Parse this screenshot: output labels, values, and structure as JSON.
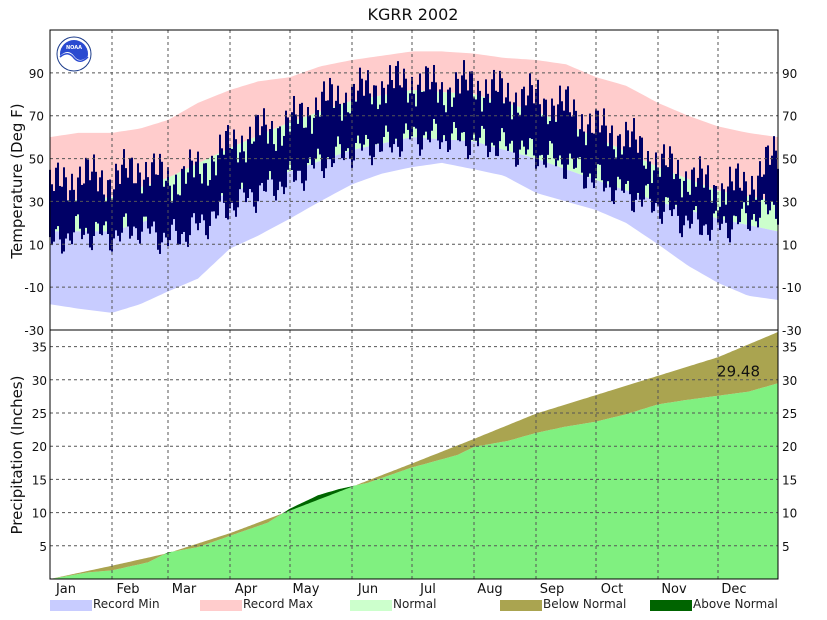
{
  "title": "KGRR 2002",
  "logo_text": "NOAA",
  "colors": {
    "record_min": "#c8ccff",
    "record_max": "#ffcccc",
    "normal": "#ccffcc",
    "actual": "#000066",
    "below_normal": "#aaa450",
    "above_normal": "#006400",
    "precip_fill": "#80f080"
  },
  "legend": {
    "record_min": "Record Min",
    "record_max": "Record Max",
    "normal": "Normal",
    "below_normal": "Below Normal",
    "above_normal": "Above Normal"
  },
  "chart_data": [
    {
      "type": "area",
      "ylabel": "Temperature (Deg F)",
      "ylim": [
        -30,
        110
      ],
      "yticks": [
        -30,
        -10,
        10,
        30,
        50,
        70,
        90
      ],
      "categories": [
        "Jan",
        "Feb",
        "Mar",
        "Apr",
        "May",
        "Jun",
        "Jul",
        "Aug",
        "Sep",
        "Oct",
        "Nov",
        "Dec"
      ],
      "grid": true,
      "series": [
        {
          "name": "Record Max",
          "x": [
            1,
            15,
            32,
            46,
            60,
            75,
            91,
            105,
            121,
            136,
            152,
            167,
            182,
            197,
            213,
            228,
            244,
            259,
            274,
            289,
            305,
            320,
            335,
            350,
            365
          ],
          "values": [
            60,
            62,
            62,
            64,
            68,
            76,
            82,
            86,
            88,
            93,
            96,
            98,
            100,
            100,
            99,
            97,
            96,
            94,
            88,
            84,
            76,
            70,
            65,
            62,
            60
          ]
        },
        {
          "name": "Normal High",
          "x": [
            1,
            32,
            60,
            91,
            121,
            152,
            182,
            213,
            244,
            274,
            305,
            335,
            365
          ],
          "values": [
            30,
            32,
            41,
            55,
            67,
            77,
            82,
            80,
            72,
            60,
            46,
            35,
            30
          ]
        },
        {
          "name": "Normal Low",
          "x": [
            1,
            32,
            60,
            91,
            121,
            152,
            182,
            213,
            244,
            274,
            305,
            335,
            365
          ],
          "values": [
            16,
            16,
            24,
            34,
            44,
            54,
            60,
            58,
            50,
            40,
            30,
            22,
            16
          ]
        },
        {
          "name": "Record Min",
          "x": [
            1,
            15,
            32,
            46,
            60,
            75,
            91,
            105,
            121,
            136,
            152,
            167,
            182,
            197,
            213,
            228,
            244,
            259,
            274,
            289,
            305,
            320,
            335,
            350,
            365
          ],
          "values": [
            -18,
            -20,
            -22,
            -18,
            -12,
            -6,
            8,
            14,
            22,
            30,
            38,
            43,
            46,
            48,
            45,
            42,
            34,
            30,
            26,
            20,
            10,
            0,
            -8,
            -14,
            -16
          ]
        },
        {
          "name": "Daily High",
          "x": [
            1,
            15,
            32,
            46,
            60,
            75,
            91,
            105,
            121,
            136,
            152,
            167,
            182,
            197,
            213,
            228,
            244,
            259,
            274,
            289,
            305,
            320,
            335,
            350,
            365
          ],
          "values": [
            36,
            42,
            40,
            46,
            40,
            44,
            56,
            62,
            66,
            76,
            80,
            84,
            86,
            82,
            85,
            80,
            78,
            74,
            64,
            60,
            48,
            42,
            36,
            38,
            52
          ]
        },
        {
          "name": "Daily Low",
          "x": [
            1,
            15,
            32,
            46,
            60,
            75,
            91,
            105,
            121,
            136,
            152,
            167,
            182,
            197,
            213,
            228,
            244,
            259,
            274,
            289,
            305,
            320,
            335,
            350,
            365
          ],
          "values": [
            10,
            16,
            14,
            18,
            12,
            18,
            28,
            34,
            40,
            48,
            54,
            56,
            60,
            60,
            58,
            56,
            52,
            48,
            40,
            34,
            28,
            20,
            18,
            22,
            28
          ]
        }
      ]
    },
    {
      "type": "area",
      "ylabel": "Precipitation (Inches)",
      "ylim": [
        0,
        37.5
      ],
      "yticks": [
        5,
        10,
        15,
        20,
        25,
        30,
        35
      ],
      "categories": [
        "Jan",
        "Feb",
        "Mar",
        "Apr",
        "May",
        "Jun",
        "Jul",
        "Aug",
        "Sep",
        "Oct",
        "Nov",
        "Dec"
      ],
      "grid": true,
      "annotation": "29.48",
      "series": [
        {
          "name": "Normal Accumulated",
          "x": [
            1,
            32,
            60,
            91,
            121,
            152,
            182,
            213,
            244,
            274,
            305,
            335,
            365
          ],
          "values": [
            0,
            2.0,
            3.9,
            6.9,
            10.3,
            13.9,
            17.4,
            21.1,
            24.9,
            27.7,
            30.6,
            33.4,
            37.2
          ]
        },
        {
          "name": "Observed Accumulated",
          "x": [
            1,
            20,
            32,
            50,
            60,
            75,
            91,
            110,
            121,
            135,
            145,
            160,
            182,
            205,
            213,
            230,
            244,
            258,
            274,
            290,
            305,
            320,
            335,
            350,
            365
          ],
          "values": [
            0,
            1.0,
            1.3,
            2.5,
            4.0,
            4.8,
            6.5,
            8.5,
            10.6,
            12.6,
            13.5,
            14.5,
            16.8,
            18.7,
            19.9,
            20.8,
            22.0,
            22.9,
            23.7,
            24.9,
            26.3,
            27.0,
            27.6,
            28.2,
            29.48
          ]
        }
      ]
    }
  ]
}
